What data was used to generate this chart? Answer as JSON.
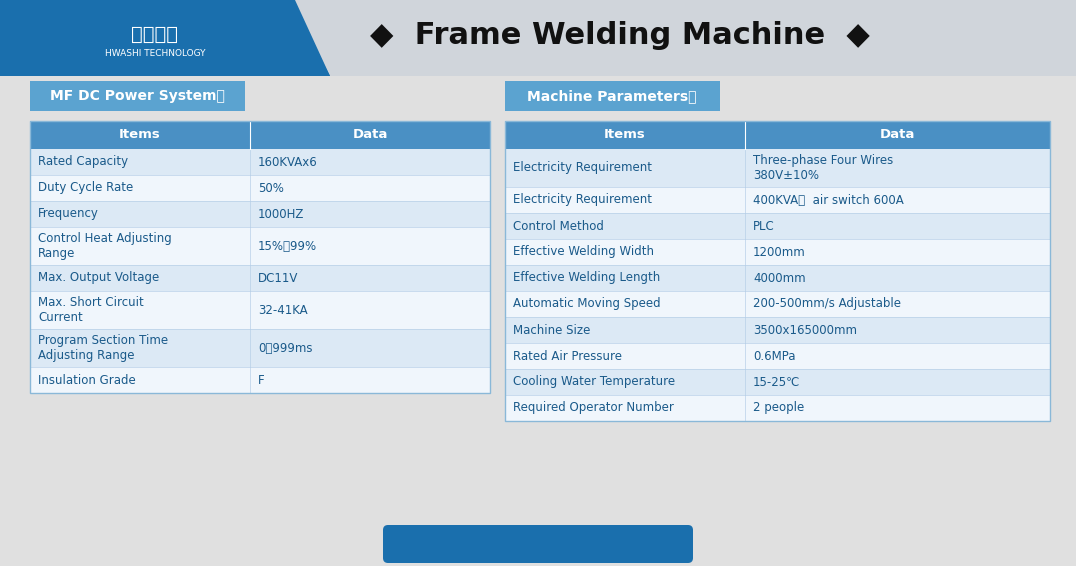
{
  "title": "Frame Welding Machine",
  "bg_color": "#e0e0e0",
  "header_blue": "#1a6fad",
  "header_bar_color": "#2196d4",
  "table_header_bg": "#4a90c4",
  "row_alt1": "#dce9f5",
  "row_alt2": "#f0f6fc",
  "text_dark": "#1a5a8a",
  "text_black": "#222222",
  "section1_title": "MF DC Power System：",
  "section2_title": "Machine Parameters：",
  "left_table": {
    "headers": [
      "Items",
      "Data"
    ],
    "rows": [
      [
        "Rated Capacity",
        "160KVAx6"
      ],
      [
        "Duty Cycle Rate",
        "50%"
      ],
      [
        "Frequency",
        "1000HZ"
      ],
      [
        "Control Heat Adjusting\nRange",
        "15%～99%"
      ],
      [
        "Max. Output Voltage",
        "DC11V"
      ],
      [
        "Max. Short Circuit\nCurrent",
        "32-41KA"
      ],
      [
        "Program Section Time\nAdjusting Range",
        "0～999ms"
      ],
      [
        "Insulation Grade",
        "F"
      ]
    ]
  },
  "right_table": {
    "headers": [
      "Items",
      "Data"
    ],
    "rows": [
      [
        "Electricity Requirement",
        "Three-phase Four Wires\n380V±10%"
      ],
      [
        "Electricity Requirement",
        "400KVA，  air switch 600A"
      ],
      [
        "Control Method",
        "PLC"
      ],
      [
        "Effective Welding Width",
        "1200mm"
      ],
      [
        "Effective Welding Length",
        "4000mm"
      ],
      [
        "Automatic Moving Speed",
        "200-500mm/s Adjustable"
      ],
      [
        "Machine Size",
        "3500x165000mm"
      ],
      [
        "Rated Air Pressure",
        "0.6MPa"
      ],
      [
        "Cooling Water Temperature",
        "15-25℃"
      ],
      [
        "Required Operator Number",
        "2 people"
      ]
    ]
  }
}
